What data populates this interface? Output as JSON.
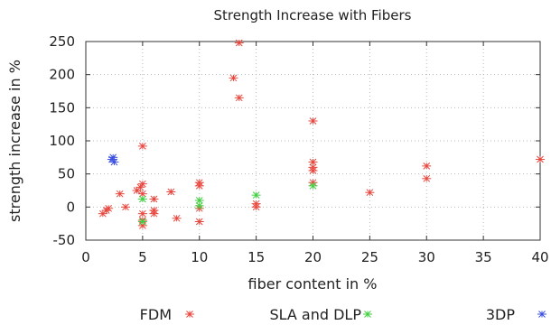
{
  "chart_data": {
    "type": "scatter",
    "title": "Strength Increase with Fibers",
    "xlabel": "fiber content in %",
    "ylabel": "strength increase in %",
    "xlim": [
      0,
      40
    ],
    "ylim": [
      -50,
      250
    ],
    "xticks": [
      0,
      5,
      10,
      15,
      20,
      25,
      30,
      35,
      40
    ],
    "yticks": [
      -50,
      0,
      50,
      100,
      150,
      200,
      250
    ],
    "grid": true,
    "grid_style": "dotted",
    "legend_position": "bottom",
    "series": [
      {
        "name": "FDM",
        "color": "#e8453c",
        "marker": "asterisk",
        "points": [
          [
            1.5,
            -10
          ],
          [
            1.8,
            -5
          ],
          [
            2.0,
            -2
          ],
          [
            3.0,
            20
          ],
          [
            3.5,
            0
          ],
          [
            4.5,
            25
          ],
          [
            4.8,
            30
          ],
          [
            5.0,
            35
          ],
          [
            5.0,
            92
          ],
          [
            5.0,
            20
          ],
          [
            5.0,
            -10
          ],
          [
            5.0,
            -20
          ],
          [
            5.0,
            -28
          ],
          [
            6.0,
            12
          ],
          [
            6.0,
            -5
          ],
          [
            6.0,
            -10
          ],
          [
            7.5,
            23
          ],
          [
            8.0,
            -17
          ],
          [
            10.0,
            37
          ],
          [
            10.0,
            32
          ],
          [
            10.0,
            -2
          ],
          [
            10.0,
            -22
          ],
          [
            13.0,
            195
          ],
          [
            13.5,
            248
          ],
          [
            13.5,
            165
          ],
          [
            15.0,
            5
          ],
          [
            15.0,
            0
          ],
          [
            20.0,
            130
          ],
          [
            20.0,
            68
          ],
          [
            20.0,
            60
          ],
          [
            20.0,
            55
          ],
          [
            20.0,
            37
          ],
          [
            25.0,
            22
          ],
          [
            30.0,
            62
          ],
          [
            30.0,
            43
          ],
          [
            40.0,
            72
          ]
        ]
      },
      {
        "name": "SLA and DLP",
        "color": "#3fcf3f",
        "marker": "asterisk",
        "points": [
          [
            5.0,
            12
          ],
          [
            5.0,
            -22
          ],
          [
            10.0,
            10
          ],
          [
            10.0,
            2
          ],
          [
            15.0,
            18
          ],
          [
            20.0,
            32
          ]
        ]
      },
      {
        "name": "3DP",
        "color": "#3b4fe0",
        "marker": "asterisk",
        "points": [
          [
            2.3,
            72
          ],
          [
            2.5,
            68
          ],
          [
            2.4,
            75
          ]
        ]
      }
    ]
  }
}
